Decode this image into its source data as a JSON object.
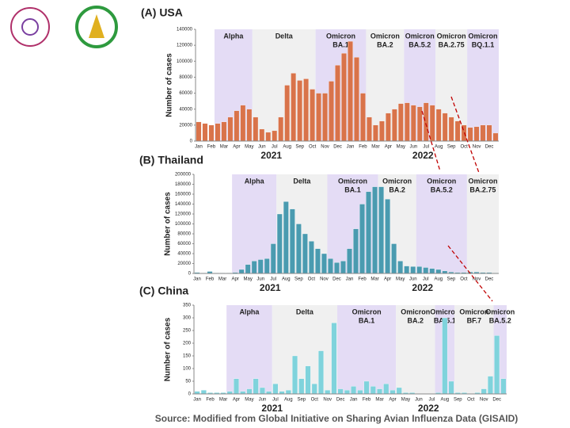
{
  "chart_data": [
    {
      "type": "bar",
      "title": "(A) USA",
      "y_label": "Number of cases",
      "color": "#d9734a",
      "categories": [
        "Jan",
        null,
        "Feb",
        null,
        "Mar",
        null,
        "Apr",
        null,
        "May",
        null,
        "Jun",
        null,
        "Jul",
        null,
        "Aug",
        null,
        "Sep",
        null,
        "Oct",
        null,
        "Nov",
        null,
        "Dec",
        null,
        "Jan",
        null,
        "Feb",
        null,
        "Mar",
        null,
        "Apr",
        null,
        "May",
        null,
        "Jun",
        null,
        "Jul",
        null,
        "Aug",
        null,
        "Sep",
        null,
        "Oct",
        null,
        "Nov",
        null,
        "Dec",
        null
      ],
      "values": [
        24000,
        22000,
        20000,
        22000,
        24000,
        30000,
        38000,
        45000,
        40000,
        30000,
        15000,
        11000,
        13000,
        30000,
        70000,
        85000,
        76000,
        78000,
        65000,
        60000,
        60000,
        75000,
        95000,
        110000,
        125000,
        105000,
        60000,
        30000,
        20000,
        25000,
        35000,
        40000,
        47000,
        48000,
        45000,
        43000,
        48000,
        45000,
        40000,
        35000,
        30000,
        25000,
        20000,
        17000,
        18000,
        20000,
        20000,
        10000
      ],
      "ylim": [
        0,
        140000
      ],
      "yticks": [
        0,
        20000,
        40000,
        60000,
        80000,
        100000,
        120000,
        140000
      ],
      "years": [
        "2021",
        "2022"
      ],
      "regions": [
        {
          "label": [
            "Alpha"
          ],
          "start": 3,
          "end": 8,
          "color": "#e4dcf5"
        },
        {
          "label": [
            "Delta"
          ],
          "start": 9,
          "end": 18,
          "color": "#f0f0f0"
        },
        {
          "label": [
            "Omicron",
            "BA.1"
          ],
          "start": 19,
          "end": 26,
          "color": "#e4dcf5"
        },
        {
          "label": [
            "Omicron",
            "BA.2"
          ],
          "start": 27,
          "end": 32,
          "color": "#f0f0f0"
        },
        {
          "label": [
            "Omicron",
            "BA.5.2"
          ],
          "start": 33,
          "end": 37,
          "color": "#e4dcf5"
        },
        {
          "label": [
            "Omicron",
            "BA.2.75"
          ],
          "start": 38,
          "end": 42,
          "color": "#f0f0f0"
        },
        {
          "label": [
            "Omicron",
            "BQ.1.1"
          ],
          "start": 43,
          "end": 47,
          "color": "#e4dcf5"
        }
      ]
    },
    {
      "type": "bar",
      "title": "(B) Thailand",
      "y_label": "Number of cases",
      "color": "#4a9bb0",
      "categories": [
        "Jan",
        null,
        "Feb",
        null,
        "Mar",
        null,
        "Apr",
        null,
        "May",
        null,
        "Jun",
        null,
        "Jul",
        null,
        "Aug",
        null,
        "Sep",
        null,
        "Oct",
        null,
        "Nov",
        null,
        "Dec",
        null,
        "Jan",
        null,
        "Feb",
        null,
        "Mar",
        null,
        "Apr",
        null,
        "May",
        null,
        "Jun",
        null,
        "Jul",
        null,
        "Aug",
        null,
        "Sep",
        null,
        "Oct",
        null,
        "Nov",
        null,
        "Dec",
        null
      ],
      "values": [
        2000,
        1000,
        4000,
        1000,
        1000,
        1000,
        2000,
        8000,
        18000,
        25000,
        28000,
        30000,
        60000,
        120000,
        145000,
        130000,
        100000,
        80000,
        65000,
        50000,
        40000,
        30000,
        22000,
        25000,
        50000,
        90000,
        140000,
        165000,
        175000,
        175000,
        150000,
        60000,
        25000,
        15000,
        14000,
        14000,
        12000,
        10000,
        8000,
        5000,
        3000,
        2000,
        2000,
        3000,
        3000,
        2000,
        2000,
        1000
      ],
      "ylim": [
        0,
        200000
      ],
      "yticks": [
        0,
        20000,
        40000,
        60000,
        80000,
        100000,
        120000,
        140000,
        160000,
        180000,
        200000
      ],
      "years": [
        "2021",
        "2022"
      ],
      "regions": [
        {
          "label": [
            "Alpha"
          ],
          "start": 6,
          "end": 12,
          "color": "#e4dcf5"
        },
        {
          "label": [
            "Delta"
          ],
          "start": 13,
          "end": 20,
          "color": "#f0f0f0"
        },
        {
          "label": [
            "Omicron",
            "BA.1"
          ],
          "start": 21,
          "end": 28,
          "color": "#e4dcf5"
        },
        {
          "label": [
            "Omicron",
            "BA.2"
          ],
          "start": 29,
          "end": 34,
          "color": "#f0f0f0"
        },
        {
          "label": [
            "Omicron",
            "BA.5.2"
          ],
          "start": 35,
          "end": 42,
          "color": "#e4dcf5"
        },
        {
          "label": [
            "Omicron",
            "BA.2.75"
          ],
          "start": 43,
          "end": 47,
          "color": "#f0f0f0"
        }
      ]
    },
    {
      "type": "bar",
      "title": "(C) China",
      "y_label": "Number of cases",
      "color": "#7fd3dc",
      "categories": [
        "Jan",
        null,
        "Feb",
        null,
        "Mar",
        null,
        "Apr",
        null,
        "May",
        null,
        "Jun",
        null,
        "Jul",
        null,
        "Aug",
        null,
        "Sep",
        null,
        "Oct",
        null,
        "Nov",
        null,
        "Dec",
        null,
        "Jan",
        null,
        "Feb",
        null,
        "Mar",
        null,
        "Apr",
        null,
        "May",
        null,
        "Jun",
        null,
        "Jul",
        null,
        "Aug",
        null,
        "Sep",
        null,
        "Oct",
        null,
        "Nov",
        null,
        "Dec",
        null
      ],
      "values": [
        10,
        15,
        5,
        5,
        5,
        10,
        60,
        10,
        20,
        60,
        25,
        10,
        40,
        10,
        15,
        150,
        60,
        110,
        40,
        170,
        15,
        280,
        20,
        15,
        30,
        15,
        50,
        30,
        20,
        40,
        15,
        25,
        5,
        5,
        0,
        0,
        0,
        5,
        300,
        50,
        5,
        5,
        0,
        5,
        20,
        70,
        230,
        60
      ],
      "ylim": [
        0,
        350
      ],
      "yticks": [
        0,
        50,
        100,
        150,
        200,
        250,
        300,
        350
      ],
      "years": [
        "2021",
        "2022"
      ],
      "regions": [
        {
          "label": [
            "Alpha"
          ],
          "start": 5,
          "end": 11,
          "color": "#e4dcf5"
        },
        {
          "label": [
            "Delta"
          ],
          "start": 12,
          "end": 21,
          "color": "#f0f0f0"
        },
        {
          "label": [
            "Omicron",
            "BA.1"
          ],
          "start": 22,
          "end": 30,
          "color": "#e4dcf5"
        },
        {
          "label": [
            "Omicron",
            "BA.2"
          ],
          "start": 31,
          "end": 36,
          "color": "#f0f0f0"
        },
        {
          "label": [
            "Omicron",
            "BA.5.1"
          ],
          "start": 37,
          "end": 39,
          "color": "#e4dcf5"
        },
        {
          "label": [
            "Omicron",
            "BF.7"
          ],
          "start": 40,
          "end": 45,
          "color": "#f0f0f0"
        },
        {
          "label": [
            "Omicron",
            "BA.5.2"
          ],
          "start": 46,
          "end": 47,
          "color": "#e4dcf5"
        }
      ]
    }
  ],
  "source": "Source: Modified from Global Initiative on Sharing Avian Influenza Data (GISAID)"
}
